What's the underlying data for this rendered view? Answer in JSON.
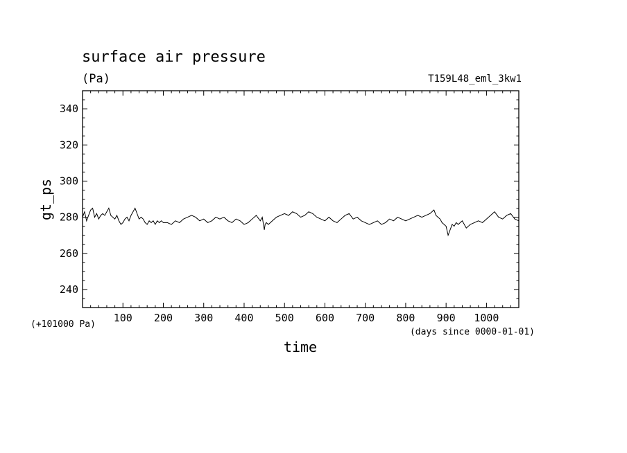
{
  "chart_data": {
    "type": "line",
    "title": "surface air pressure",
    "units": "(Pa)",
    "run_name": "T159L48_eml_3kw1",
    "xlabel": "time",
    "ylabel": "gt_ps",
    "x_unit_note": "(days since 0000-01-01)",
    "y_offset_note": "(+101000 Pa)",
    "xlim": [
      0,
      1080
    ],
    "ylim": [
      230,
      350
    ],
    "x_ticks": [
      100,
      200,
      300,
      400,
      500,
      600,
      700,
      800,
      900,
      1000
    ],
    "y_ticks": [
      240,
      260,
      280,
      300,
      320,
      340
    ],
    "grid": false,
    "series": [
      {
        "x": [
          0,
          5,
          10,
          15,
          20,
          25,
          30,
          35,
          40,
          45,
          50,
          55,
          60,
          65,
          70,
          75,
          80,
          85,
          90,
          95,
          100,
          105,
          110,
          115,
          120,
          125,
          130,
          135,
          140,
          145,
          150,
          155,
          160,
          165,
          170,
          175,
          180,
          185,
          190,
          195,
          200,
          210,
          220,
          230,
          240,
          250,
          260,
          270,
          280,
          290,
          300,
          310,
          320,
          330,
          340,
          350,
          360,
          370,
          380,
          390,
          400,
          410,
          420,
          430,
          440,
          445,
          450,
          452,
          455,
          460,
          470,
          480,
          490,
          500,
          510,
          520,
          530,
          540,
          550,
          560,
          570,
          580,
          590,
          600,
          610,
          620,
          630,
          640,
          650,
          660,
          670,
          680,
          690,
          700,
          710,
          720,
          730,
          740,
          750,
          760,
          770,
          780,
          790,
          800,
          810,
          820,
          830,
          840,
          850,
          860,
          865,
          870,
          875,
          880,
          885,
          890,
          895,
          900,
          905,
          910,
          915,
          920,
          925,
          930,
          940,
          950,
          960,
          970,
          980,
          990,
          1000,
          1010,
          1020,
          1030,
          1040,
          1050,
          1060,
          1070,
          1080
        ],
        "y": [
          280,
          283,
          278,
          281,
          284,
          285,
          280,
          282,
          279,
          281,
          282,
          281,
          283,
          285,
          281,
          280,
          279,
          281,
          278,
          276,
          277,
          279,
          280,
          278,
          281,
          283,
          285,
          282,
          279,
          280,
          279,
          277,
          276,
          278,
          277,
          278,
          276,
          278,
          277,
          278,
          277,
          277,
          276,
          278,
          277,
          279,
          280,
          281,
          280,
          278,
          279,
          277,
          278,
          280,
          279,
          280,
          278,
          277,
          279,
          278,
          276,
          277,
          279,
          281,
          278,
          280,
          273,
          276,
          277,
          276,
          278,
          280,
          281,
          282,
          281,
          283,
          282,
          280,
          281,
          283,
          282,
          280,
          279,
          278,
          280,
          278,
          277,
          279,
          281,
          282,
          279,
          280,
          278,
          277,
          276,
          277,
          278,
          276,
          277,
          279,
          278,
          280,
          279,
          278,
          279,
          280,
          281,
          280,
          281,
          282,
          283,
          284,
          281,
          280,
          279,
          277,
          276,
          275,
          270,
          273,
          276,
          275,
          277,
          276,
          278,
          274,
          276,
          277,
          278,
          277,
          279,
          281,
          283,
          280,
          279,
          281,
          282,
          279,
          278
        ]
      }
    ]
  }
}
